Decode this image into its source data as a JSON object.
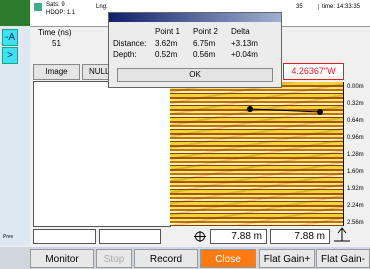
{
  "top_bar": {
    "sats_label": "Sats:",
    "sats": "9",
    "hdop_label": "HDOP:",
    "hdop": "1.1",
    "lng_label": "Lng:",
    "right_fragment": "35",
    "time": "time: 14:33:35"
  },
  "side_buttons": [
    "-A",
    ">"
  ],
  "time_label": "Time (ns)",
  "time_value": "51",
  "dialog": {
    "headers": [
      "Point 1",
      "Point 2",
      "Delta"
    ],
    "rows": [
      [
        "Distance:",
        "3.62m",
        "6.75m",
        "+3.13m"
      ],
      [
        "Depth:",
        "0.52m",
        "0.56m",
        "+0.04m"
      ]
    ],
    "ok": "OK"
  },
  "image_button": "Image",
  "null_button": "NULL",
  "coordinate": "4.26367\"W",
  "depth_scale": [
    "0.00m",
    "0.32m",
    "0.64m",
    "0.96m",
    "1.28m",
    "1.60m",
    "1.92m",
    "2.24m",
    "2.56m"
  ],
  "prev_label": "Prev",
  "distance_a": "7.88 m",
  "distance_b": "7.88 m",
  "toolbar": [
    "Monitor",
    "Stop",
    "Record",
    "Close",
    "Flat Gain+",
    "Flat Gain-"
  ]
}
